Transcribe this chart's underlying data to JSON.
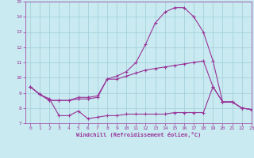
{
  "xlabel": "Windchill (Refroidissement éolien,°C)",
  "xlim": [
    -0.5,
    23
  ],
  "ylim": [
    7,
    15
  ],
  "yticks": [
    7,
    8,
    9,
    10,
    11,
    12,
    13,
    14,
    15
  ],
  "xticks": [
    0,
    1,
    2,
    3,
    4,
    5,
    6,
    7,
    8,
    9,
    10,
    11,
    12,
    13,
    14,
    15,
    16,
    17,
    18,
    19,
    20,
    21,
    22,
    23
  ],
  "bg_color": "#c8eaf0",
  "grid_color": "#a0ccd8",
  "line_color": "#993399",
  "line1_x": [
    0,
    1,
    2,
    3,
    4,
    5,
    6,
    7,
    8,
    9,
    10,
    11,
    12,
    13,
    14,
    15,
    16,
    17,
    18,
    19,
    20,
    21,
    22,
    23
  ],
  "line1_y": [
    9.4,
    8.9,
    8.6,
    7.5,
    7.5,
    7.8,
    7.3,
    7.4,
    7.5,
    7.5,
    7.6,
    7.6,
    7.6,
    7.6,
    7.6,
    7.7,
    7.7,
    7.7,
    7.7,
    9.4,
    8.4,
    8.4,
    8.0,
    7.9
  ],
  "line2_x": [
    0,
    1,
    2,
    3,
    4,
    5,
    6,
    7,
    8,
    9,
    10,
    11,
    12,
    13,
    14,
    15,
    16,
    17,
    18,
    19,
    20,
    21,
    22,
    23
  ],
  "line2_y": [
    9.4,
    8.9,
    8.5,
    8.5,
    8.5,
    8.6,
    8.6,
    8.7,
    9.9,
    9.9,
    10.1,
    10.3,
    10.5,
    10.6,
    10.7,
    10.8,
    10.9,
    11.0,
    11.1,
    9.4,
    8.4,
    8.4,
    8.0,
    7.9
  ],
  "line3_x": [
    0,
    1,
    2,
    3,
    4,
    5,
    6,
    7,
    8,
    9,
    10,
    11,
    12,
    13,
    14,
    15,
    16,
    17,
    18,
    19,
    20,
    21,
    22,
    23
  ],
  "line3_y": [
    9.4,
    8.9,
    8.5,
    8.5,
    8.5,
    8.7,
    8.7,
    8.8,
    9.9,
    10.1,
    10.4,
    11.0,
    12.2,
    13.6,
    14.3,
    14.6,
    14.6,
    14.0,
    13.0,
    11.1,
    8.4,
    8.4,
    8.0,
    7.9
  ],
  "marker": "+"
}
